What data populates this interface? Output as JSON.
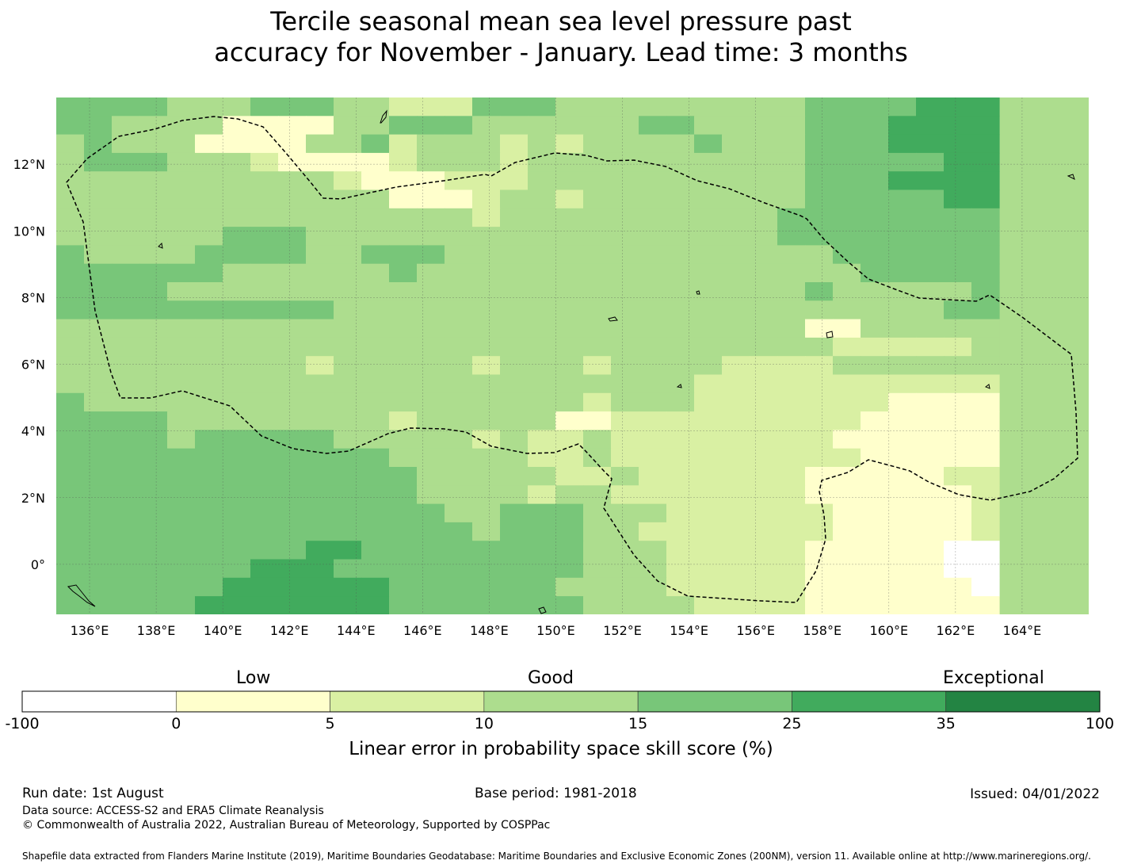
{
  "title": {
    "line1": "Tercile seasonal mean sea level pressure past",
    "line2": "accuracy for November - January. Lead time: 3 months"
  },
  "map": {
    "lon_range": [
      135,
      166
    ],
    "lat_range": [
      -1.5,
      14
    ],
    "lon_ticks": [
      "136°E",
      "138°E",
      "140°E",
      "142°E",
      "144°E",
      "146°E",
      "148°E",
      "150°E",
      "152°E",
      "154°E",
      "156°E",
      "158°E",
      "160°E",
      "162°E",
      "164°E"
    ],
    "lat_ticks": [
      "12°N",
      "10°N",
      "8°N",
      "6°N",
      "4°N",
      "2°N",
      "0°"
    ],
    "boundary_style": "dashed black EEZ outline",
    "grid": true
  },
  "legend": {
    "categories": [
      "Low",
      "Good",
      "Exceptional"
    ],
    "bins": [
      {
        "from": "-100",
        "to": "0",
        "color": "#ffffff"
      },
      {
        "from": "0",
        "to": "5",
        "color": "#ffffcc"
      },
      {
        "from": "5",
        "to": "10",
        "color": "#d9f0a3"
      },
      {
        "from": "10",
        "to": "15",
        "color": "#addd8e"
      },
      {
        "from": "15",
        "to": "25",
        "color": "#78c679"
      },
      {
        "from": "25",
        "to": "35",
        "color": "#41ab5d"
      },
      {
        "from": "35",
        "to": "100",
        "color": "#238443"
      }
    ],
    "tick_labels": [
      "-100",
      "0",
      "5",
      "10",
      "15",
      "25",
      "35",
      "100"
    ],
    "axis_label": "Linear error in probability space skill score (%)"
  },
  "footer": {
    "run_date": "Run date: 1st August",
    "base_period": "Base period: 1981-2018",
    "issued": "Issued: 04/01/2022",
    "data_source": "Data source: ACCESS-S2 and ERA5 Climate Reanalysis",
    "copyright": "© Commonwealth of Australia 2022, Australian Bureau of Meteorology, Supported by COSPPac",
    "shapefile": "Shapefile data extracted from Flanders Marine Institute (2019), Maritime Boundaries Geodatabase: Maritime Boundaries and Exclusive Economic Zones (200NM), version 11. Available online at http://www.marineregions.org/."
  }
}
